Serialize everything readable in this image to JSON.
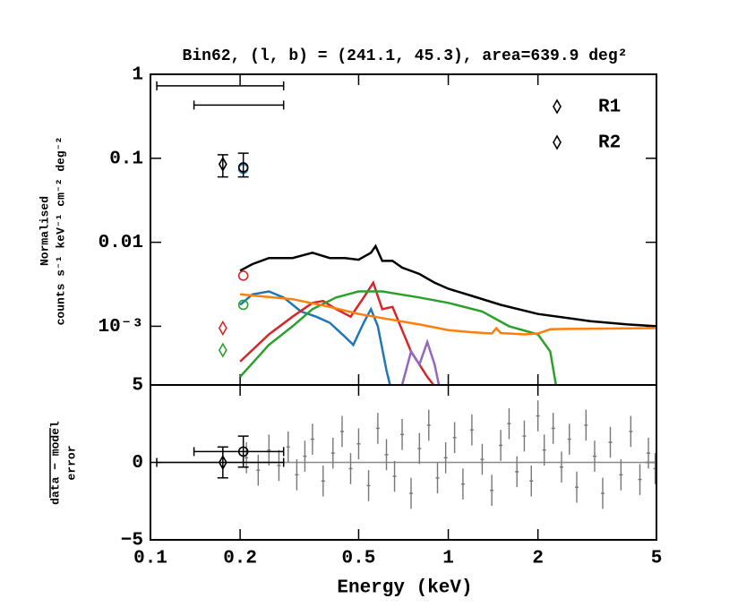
{
  "chart_data": [
    {
      "type": "spectrum",
      "title": "Bin62, (l, b) = (241.1, 45.3), area=639.9 deg²",
      "ylabel": [
        "Normalised",
        "counts s⁻¹ keV⁻¹ cm⁻² deg⁻²"
      ],
      "log_x": true,
      "log_y": true,
      "xlim": [
        0.1,
        5
      ],
      "xticks": [
        0.1,
        0.2,
        0.5,
        1,
        2,
        5
      ],
      "ylim": [
        0.0002,
        1
      ],
      "yticks": [
        1,
        0.1,
        0.01,
        {
          "value": 0.001,
          "label": "10⁻³"
        }
      ],
      "legend": "upper right",
      "series": [
        {
          "color": "#000000",
          "x": [
            0.2,
            0.22,
            0.25,
            0.3,
            0.35,
            0.4,
            0.45,
            0.5,
            0.55,
            0.57,
            0.6,
            0.65,
            0.7,
            0.8,
            0.9,
            1.0,
            1.2,
            1.5,
            2,
            3,
            4,
            5
          ],
          "values": [
            0.0046,
            0.0055,
            0.0065,
            0.0065,
            0.0075,
            0.0065,
            0.0065,
            0.0062,
            0.0075,
            0.009,
            0.006,
            0.006,
            0.005,
            0.0042,
            0.0033,
            0.0028,
            0.0023,
            0.0018,
            0.0014,
            0.00115,
            0.00105,
            0.001
          ]
        },
        {
          "color": "#1f77b4",
          "x": [
            0.2,
            0.22,
            0.25,
            0.28,
            0.32,
            0.36,
            0.4,
            0.45,
            0.48,
            0.52,
            0.55,
            0.58,
            0.62,
            0.65
          ],
          "values": [
            0.0018,
            0.0024,
            0.0026,
            0.0022,
            0.0015,
            0.0013,
            0.0011,
            0.00075,
            0.0006,
            0.0011,
            0.0016,
            0.001,
            0.0003,
            0.00015
          ]
        },
        {
          "color": "#d62728",
          "x": [
            0.2,
            0.25,
            0.3,
            0.35,
            0.38,
            0.42,
            0.47,
            0.52,
            0.56,
            0.6,
            0.65,
            0.7,
            0.75,
            0.85,
            0.95
          ],
          "values": [
            0.00038,
            0.0008,
            0.0013,
            0.0019,
            0.002,
            0.0016,
            0.0013,
            0.0022,
            0.0033,
            0.0016,
            0.0017,
            0.0009,
            0.0005,
            0.00025,
            0.00015
          ]
        },
        {
          "color": "#2ca02c",
          "x": [
            0.2,
            0.25,
            0.3,
            0.35,
            0.42,
            0.5,
            0.6,
            0.8,
            1.0,
            1.3,
            1.6,
            2.0,
            2.2,
            2.3
          ],
          "values": [
            0.00025,
            0.0006,
            0.001,
            0.0016,
            0.0022,
            0.0026,
            0.0026,
            0.0022,
            0.0019,
            0.0015,
            0.001,
            0.0008,
            0.0005,
            0.0002
          ]
        },
        {
          "color": "#ff7f0e",
          "x": [
            0.2,
            0.3,
            0.4,
            0.5,
            0.6,
            0.8,
            1.0,
            1.2,
            1.4,
            1.45,
            1.5,
            1.8,
            2,
            2.2,
            2.5,
            5
          ],
          "values": [
            0.0024,
            0.0021,
            0.0017,
            0.0014,
            0.00125,
            0.00105,
            0.0009,
            0.00085,
            0.00082,
            0.00095,
            0.00083,
            0.0008,
            0.00082,
            0.00092,
            0.00093,
            0.00095
          ]
        },
        {
          "color": "#9467bd",
          "x": [
            0.7,
            0.75,
            0.8,
            0.85,
            0.9,
            0.93
          ],
          "values": [
            0.0002,
            0.0005,
            0.00035,
            0.00065,
            0.00035,
            0.0002
          ]
        }
      ],
      "ranges": [
        {
          "x": [
            0.105,
            0.28
          ],
          "y": 0.73
        },
        {
          "x": [
            0.14,
            0.28
          ],
          "y": 0.43
        }
      ],
      "points": [
        {
          "name": "R1",
          "marker": "diamond",
          "x": 0.175,
          "y": 0.085,
          "ylow": 0.06,
          "yhigh": 0.11
        },
        {
          "name": "R2",
          "marker": "circle",
          "x": 0.205,
          "y": 0.078,
          "ylow": 0.06,
          "yhigh": 0.115
        }
      ],
      "component_points": [
        {
          "color": "#1f77b4",
          "marker": "circle",
          "x": 0.205,
          "y": 0.075
        },
        {
          "color": "#d62728",
          "marker": "circle",
          "x": 0.205,
          "y": 0.004
        },
        {
          "color": "#2ca02c",
          "marker": "circle",
          "x": 0.205,
          "y": 0.0018
        },
        {
          "color": "#d62728",
          "marker": "diamond",
          "x": 0.175,
          "y": 0.00095
        },
        {
          "color": "#2ca02c",
          "marker": "diamond",
          "x": 0.175,
          "y": 0.00052
        }
      ]
    },
    {
      "type": "residual",
      "ylabel": [
        "data − model",
        "error"
      ],
      "xlabel": "Energy (keV)",
      "log_x": true,
      "xlim": [
        0.1,
        5
      ],
      "xticks": [
        0.1,
        0.2,
        0.5,
        1,
        2,
        5
      ],
      "ylim": [
        -5,
        5
      ],
      "yticks": [
        {
          "value": -5,
          "label": "−5"
        },
        0,
        5
      ],
      "color": "#777777",
      "x": [
        0.21,
        0.23,
        0.25,
        0.27,
        0.29,
        0.31,
        0.33,
        0.35,
        0.38,
        0.41,
        0.44,
        0.47,
        0.5,
        0.54,
        0.58,
        0.62,
        0.66,
        0.7,
        0.75,
        0.8,
        0.86,
        0.92,
        0.98,
        1.05,
        1.12,
        1.2,
        1.3,
        1.4,
        1.5,
        1.6,
        1.7,
        1.8,
        1.9,
        2.0,
        2.1,
        2.25,
        2.4,
        2.55,
        2.7,
        2.9,
        3.1,
        3.3,
        3.5,
        3.8,
        4.1,
        4.4,
        4.7,
        4.95
      ],
      "values": [
        0.3,
        -0.5,
        0.8,
        -0.2,
        1.0,
        -0.8,
        0.4,
        1.5,
        -1.2,
        0.6,
        2.0,
        -0.4,
        1.2,
        -1.5,
        2.2,
        0.5,
        -0.9,
        1.8,
        -2.0,
        0.9,
        2.4,
        -1.0,
        0.3,
        1.6,
        -1.4,
        2.1,
        0.2,
        -1.8,
        1.1,
        2.5,
        -0.6,
        1.7,
        -1.2,
        3.0,
        0.8,
        2.2,
        -0.3,
        1.5,
        -1.6,
        2.4,
        0.4,
        -2.0,
        1.3,
        -0.8,
        2.0,
        -1.1,
        0.6,
        -0.4
      ],
      "yerr": [
        1,
        1,
        1,
        1,
        1,
        1,
        1,
        1,
        1,
        1,
        1,
        1,
        1,
        1,
        1,
        1,
        1,
        1,
        1,
        1,
        1,
        1,
        1,
        1,
        1,
        1,
        1,
        1,
        1,
        1,
        1,
        1,
        1,
        1,
        1,
        1,
        1,
        1,
        1,
        1,
        1,
        1,
        1,
        1,
        1,
        1,
        1,
        1
      ],
      "points": [
        {
          "marker": "diamond",
          "x": 0.175,
          "y": 0,
          "ylow": -1,
          "yhigh": 1,
          "xrange": [
            0.105,
            0.28
          ]
        },
        {
          "marker": "circle",
          "x": 0.205,
          "y": 0.7,
          "ylow": -0.3,
          "yhigh": 1.7,
          "xrange": [
            0.14,
            0.28
          ]
        }
      ]
    }
  ]
}
